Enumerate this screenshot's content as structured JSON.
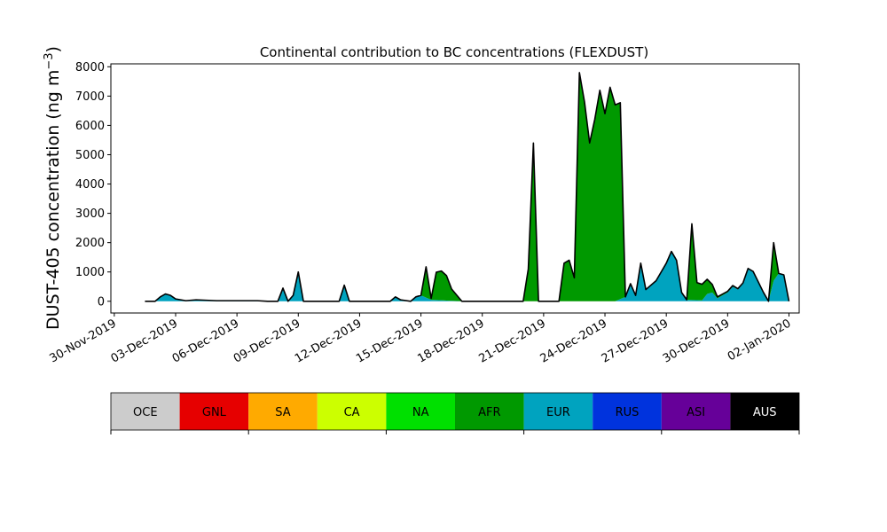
{
  "chart_data": {
    "type": "area",
    "title": "Continental contribution to BC concentrations (FLEXDUST)",
    "ylabel_main": "DUST-405 concentration (ng m",
    "ylabel_sup": "−3",
    "ylabel_close": ")",
    "xlabel": "",
    "ylim": [
      -400,
      8100
    ],
    "y_ticks": [
      0,
      1000,
      2000,
      3000,
      4000,
      5000,
      6000,
      7000,
      8000
    ],
    "xlim": [
      "2019-11-29T20:00",
      "2020-01-02T12:00"
    ],
    "x_ticks": [
      "30-Nov-2019",
      "03-Dec-2019",
      "06-Dec-2019",
      "09-Dec-2019",
      "12-Dec-2019",
      "15-Dec-2019",
      "18-Dec-2019",
      "21-Dec-2019",
      "24-Dec-2019",
      "27-Dec-2019",
      "30-Dec-2019",
      "02-Jan-2020"
    ],
    "grid": false,
    "stacked": true,
    "total_line_color": "#000000",
    "regions": [
      {
        "code": "OCE",
        "color": "#cccccc",
        "text_color": "#000000"
      },
      {
        "code": "GNL",
        "color": "#e60000",
        "text_color": "#000000"
      },
      {
        "code": "SA",
        "color": "#ffaa00",
        "text_color": "#000000"
      },
      {
        "code": "CA",
        "color": "#ccff00",
        "text_color": "#000000"
      },
      {
        "code": "NA",
        "color": "#00e000",
        "text_color": "#000000"
      },
      {
        "code": "AFR",
        "color": "#009900",
        "text_color": "#000000"
      },
      {
        "code": "EUR",
        "color": "#00a3bf",
        "text_color": "#000000"
      },
      {
        "code": "RUS",
        "color": "#0033dd",
        "text_color": "#000000"
      },
      {
        "code": "ASI",
        "color": "#660099",
        "text_color": "#000000"
      },
      {
        "code": "AUS",
        "color": "#000000",
        "text_color": "#ffffff"
      }
    ],
    "series": [
      {
        "name": "EUR",
        "points": [
          [
            "2019-12-01T12:00",
            0
          ],
          [
            "2019-12-02T00:00",
            0
          ],
          [
            "2019-12-02T06:00",
            150
          ],
          [
            "2019-12-02T12:00",
            250
          ],
          [
            "2019-12-02T18:00",
            200
          ],
          [
            "2019-12-03T00:00",
            80
          ],
          [
            "2019-12-03T12:00",
            20
          ],
          [
            "2019-12-04T00:00",
            50
          ],
          [
            "2019-12-05T00:00",
            20
          ],
          [
            "2019-12-07T00:00",
            20
          ],
          [
            "2019-12-07T12:00",
            0
          ],
          [
            "2019-12-08T00:00",
            0
          ],
          [
            "2019-12-08T06:00",
            450
          ],
          [
            "2019-12-08T12:00",
            0
          ],
          [
            "2019-12-08T18:00",
            200
          ],
          [
            "2019-12-09T00:00",
            1000
          ],
          [
            "2019-12-09T06:00",
            0
          ],
          [
            "2019-12-11T00:00",
            0
          ],
          [
            "2019-12-11T06:00",
            550
          ],
          [
            "2019-12-11T12:00",
            0
          ],
          [
            "2019-12-13T12:00",
            0
          ],
          [
            "2019-12-13T18:00",
            150
          ],
          [
            "2019-12-14T00:00",
            50
          ],
          [
            "2019-12-14T12:00",
            0
          ],
          [
            "2019-12-14T18:00",
            150
          ],
          [
            "2019-12-15T00:00",
            200
          ],
          [
            "2019-12-15T12:00",
            50
          ],
          [
            "2019-12-17T00:00",
            0
          ],
          [
            "2019-12-22T00:00",
            0
          ],
          [
            "2019-12-23T00:00",
            0
          ],
          [
            "2019-12-24T12:00",
            0
          ],
          [
            "2019-12-25T00:00",
            150
          ],
          [
            "2019-12-25T06:00",
            600
          ],
          [
            "2019-12-25T12:00",
            200
          ],
          [
            "2019-12-25T18:00",
            1300
          ],
          [
            "2019-12-26T00:00",
            400
          ],
          [
            "2019-12-26T12:00",
            700
          ],
          [
            "2019-12-27T00:00",
            1300
          ],
          [
            "2019-12-27T06:00",
            1700
          ],
          [
            "2019-12-27T12:00",
            1400
          ],
          [
            "2019-12-27T18:00",
            300
          ],
          [
            "2019-12-28T00:00",
            50
          ],
          [
            "2019-12-28T18:00",
            30
          ],
          [
            "2019-12-29T00:00",
            250
          ],
          [
            "2019-12-29T06:00",
            300
          ],
          [
            "2019-12-29T12:00",
            100
          ],
          [
            "2019-12-29T18:00",
            200
          ],
          [
            "2019-12-30T00:00",
            300
          ],
          [
            "2019-12-30T06:00",
            500
          ],
          [
            "2019-12-30T12:00",
            400
          ],
          [
            "2019-12-30T18:00",
            600
          ],
          [
            "2019-12-31T00:00",
            1100
          ],
          [
            "2019-12-31T06:00",
            1000
          ],
          [
            "2019-12-31T18:00",
            300
          ],
          [
            "2020-01-01T00:00",
            0
          ],
          [
            "2020-01-01T06:00",
            700
          ],
          [
            "2020-01-01T12:00",
            950
          ],
          [
            "2020-01-01T18:00",
            900
          ],
          [
            "2020-01-02T00:00",
            0
          ]
        ]
      },
      {
        "name": "AFR",
        "points": [
          [
            "2019-12-01T12:00",
            0
          ],
          [
            "2019-12-15T00:00",
            0
          ],
          [
            "2019-12-15T06:00",
            1050
          ],
          [
            "2019-12-15T12:00",
            50
          ],
          [
            "2019-12-15T18:00",
            950
          ],
          [
            "2019-12-16T00:00",
            1000
          ],
          [
            "2019-12-16T06:00",
            850
          ],
          [
            "2019-12-16T12:00",
            400
          ],
          [
            "2019-12-17T00:00",
            0
          ],
          [
            "2019-12-20T00:00",
            0
          ],
          [
            "2019-12-20T06:00",
            1100
          ],
          [
            "2019-12-20T12:00",
            5400
          ],
          [
            "2019-12-20T18:00",
            0
          ],
          [
            "2019-12-21T18:00",
            0
          ],
          [
            "2019-12-22T00:00",
            1300
          ],
          [
            "2019-12-22T06:00",
            1400
          ],
          [
            "2019-12-22T12:00",
            800
          ],
          [
            "2019-12-22T18:00",
            7800
          ],
          [
            "2019-12-23T00:00",
            6800
          ],
          [
            "2019-12-23T06:00",
            5400
          ],
          [
            "2019-12-23T12:00",
            6200
          ],
          [
            "2019-12-23T18:00",
            7200
          ],
          [
            "2019-12-24T00:00",
            6400
          ],
          [
            "2019-12-24T06:00",
            7300
          ],
          [
            "2019-12-24T12:00",
            6700
          ],
          [
            "2019-12-24T18:00",
            6700
          ],
          [
            "2019-12-25T00:00",
            0
          ],
          [
            "2019-12-28T00:00",
            0
          ],
          [
            "2019-12-28T06:00",
            2600
          ],
          [
            "2019-12-28T12:00",
            600
          ],
          [
            "2019-12-29T00:00",
            500
          ],
          [
            "2019-12-29T12:00",
            50
          ],
          [
            "2020-01-01T00:00",
            0
          ],
          [
            "2020-01-01T06:00",
            1300
          ],
          [
            "2020-01-01T12:00",
            0
          ],
          [
            "2020-01-02T00:00",
            0
          ]
        ]
      }
    ]
  }
}
